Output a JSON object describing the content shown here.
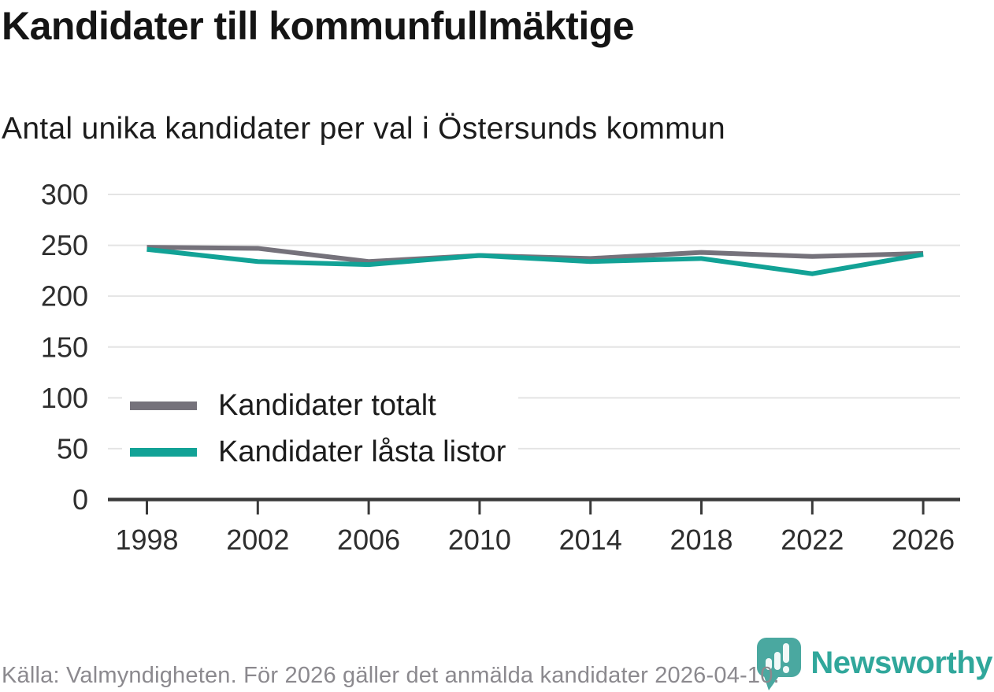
{
  "header": {
    "title": "Kandidater till kommunfullmäktige",
    "subtitle": "Antal unika kandidater per val i Östersunds kommun"
  },
  "chart_data": {
    "type": "line",
    "title": "Kandidater till kommunfullmäktige",
    "subtitle": "Antal unika kandidater per val i Östersunds kommun",
    "x": [
      1998,
      2002,
      2006,
      2010,
      2014,
      2018,
      2022,
      2026
    ],
    "series": [
      {
        "name": "Kandidater totalt",
        "color": "#75727b",
        "values": [
          248,
          247,
          234,
          240,
          237,
          243,
          239,
          242
        ]
      },
      {
        "name": "Kandidater låsta listor",
        "color": "#12a296",
        "values": [
          246,
          234,
          231,
          240,
          234,
          237,
          222,
          241
        ]
      }
    ],
    "xlabel": "",
    "ylabel": "",
    "ylim": [
      0,
      300
    ],
    "ytick_step": 50,
    "grid": true,
    "legend_position": "inside-left-middle"
  },
  "footer": {
    "source": "Källa: Valmyndigheten. För 2026 gäller det anmälda kandidater 2026-04-10."
  },
  "branding": {
    "name": "Newsworthy",
    "icon": "bar-chart-speech-bubble-icon",
    "text_color": "#30a79b",
    "icon_color": "#4aa8a0"
  },
  "colors": {
    "background": "#ffffff",
    "grid": "#e4e4e4",
    "axis": "#3a3a3a",
    "text": "#1c1c1c",
    "muted_text": "#8b898e"
  }
}
